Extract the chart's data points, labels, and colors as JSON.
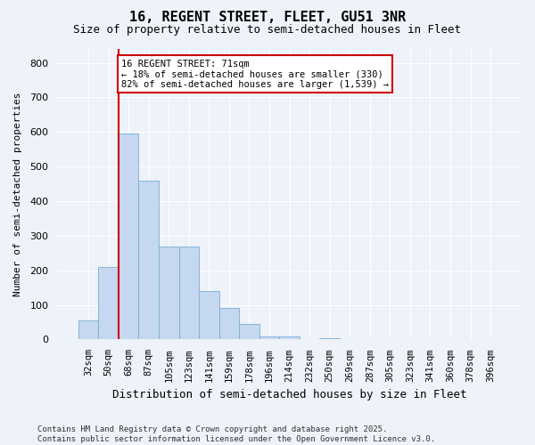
{
  "title": "16, REGENT STREET, FLEET, GU51 3NR",
  "subtitle": "Size of property relative to semi-detached houses in Fleet",
  "xlabel": "Distribution of semi-detached houses by size in Fleet",
  "ylabel": "Number of semi-detached properties",
  "categories": [
    "32sqm",
    "50sqm",
    "68sqm",
    "87sqm",
    "105sqm",
    "123sqm",
    "141sqm",
    "159sqm",
    "178sqm",
    "196sqm",
    "214sqm",
    "232sqm",
    "250sqm",
    "269sqm",
    "287sqm",
    "305sqm",
    "323sqm",
    "341sqm",
    "360sqm",
    "378sqm",
    "396sqm"
  ],
  "values": [
    55,
    210,
    595,
    460,
    270,
    270,
    140,
    90,
    45,
    10,
    10,
    0,
    5,
    0,
    0,
    0,
    0,
    0,
    0,
    0,
    0
  ],
  "bar_color": "#c5d8f0",
  "bar_edge_color": "#7aadd4",
  "property_line_color": "#cc0000",
  "property_line_bar_index": 2,
  "annotation_title": "16 REGENT STREET: 71sqm",
  "annotation_line1": "← 18% of semi-detached houses are smaller (330)",
  "annotation_line2": "82% of semi-detached houses are larger (1,539) →",
  "annotation_box_color": "#cc0000",
  "ylim": [
    0,
    840
  ],
  "yticks": [
    0,
    100,
    200,
    300,
    400,
    500,
    600,
    700,
    800
  ],
  "background_color": "#eef2f9",
  "grid_color": "#ffffff",
  "footer_line1": "Contains HM Land Registry data © Crown copyright and database right 2025.",
  "footer_line2": "Contains public sector information licensed under the Open Government Licence v3.0."
}
